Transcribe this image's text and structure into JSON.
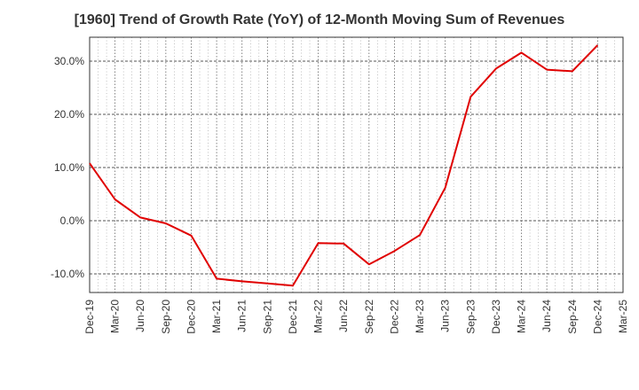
{
  "chart_data": {
    "type": "line",
    "title": "[1960]  Trend of Growth Rate (YoY) of 12-Month Moving Sum of Revenues",
    "xlabel": "",
    "ylabel": "",
    "x_tick_labels": [
      "Dec-19",
      "Mar-20",
      "Jun-20",
      "Sep-20",
      "Dec-20",
      "Mar-21",
      "Jun-21",
      "Sep-21",
      "Dec-21",
      "Mar-22",
      "Jun-22",
      "Sep-22",
      "Dec-22",
      "Mar-23",
      "Jun-23",
      "Sep-23",
      "Dec-23",
      "Mar-24",
      "Jun-24",
      "Sep-24",
      "Dec-24",
      "Mar-25"
    ],
    "y_ticks": [
      -10,
      0,
      10,
      20,
      30
    ],
    "y_tick_labels": [
      "-10.0%",
      "0.0%",
      "10.0%",
      "20.0%",
      "30.0%"
    ],
    "ylim": [
      -13.5,
      34.5
    ],
    "grid": true,
    "series": [
      {
        "color": "#e00000",
        "x": [
          "Dec-19",
          "Mar-20",
          "Jun-20",
          "Sep-20",
          "Dec-20",
          "Mar-21",
          "Jun-21",
          "Sep-21",
          "Dec-21",
          "Mar-22",
          "Jun-22",
          "Sep-22",
          "Dec-22",
          "Mar-23",
          "Jun-23",
          "Sep-23",
          "Dec-23",
          "Mar-24",
          "Jun-24",
          "Sep-24",
          "Dec-24"
        ],
        "values": [
          10.8,
          4.0,
          0.6,
          -0.5,
          -2.8,
          -10.9,
          -11.4,
          -11.8,
          -12.2,
          -4.2,
          -4.3,
          -8.2,
          -5.7,
          -2.7,
          6.2,
          23.3,
          28.6,
          31.6,
          28.4,
          28.1,
          33.0
        ]
      }
    ]
  }
}
